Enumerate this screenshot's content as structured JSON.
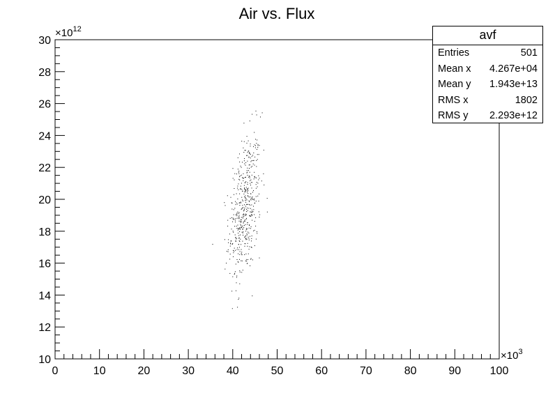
{
  "chart_data": {
    "type": "scatter",
    "title": "Air vs. Flux",
    "xlabel": "",
    "ylabel": "",
    "x_scale_label": "×10",
    "x_scale_exp": "3",
    "y_scale_label": "×10",
    "y_scale_exp": "12",
    "xlim": [
      0,
      100000
    ],
    "ylim": [
      10000000000000,
      30000000000000
    ],
    "x_ticks": [
      "0",
      "10",
      "20",
      "30",
      "40",
      "50",
      "60",
      "70",
      "80",
      "90",
      "100"
    ],
    "y_ticks": [
      "10",
      "12",
      "14",
      "16",
      "18",
      "20",
      "22",
      "24",
      "26",
      "28",
      "30"
    ],
    "grid": false,
    "point_color": "#000000",
    "n_points": 501,
    "mean_x": 42670,
    "mean_y": 19430000000000,
    "rms_x": 1802,
    "rms_y": 2293000000000,
    "stats": {
      "title": "avf",
      "rows": [
        {
          "label": "Entries",
          "value": "501"
        },
        {
          "label": "Mean x",
          "value": "4.267e+04"
        },
        {
          "label": "Mean y",
          "value": "1.943e+13"
        },
        {
          "label": "RMS x",
          "value": "1802"
        },
        {
          "label": "RMS y",
          "value": "2.293e+12"
        }
      ]
    }
  }
}
